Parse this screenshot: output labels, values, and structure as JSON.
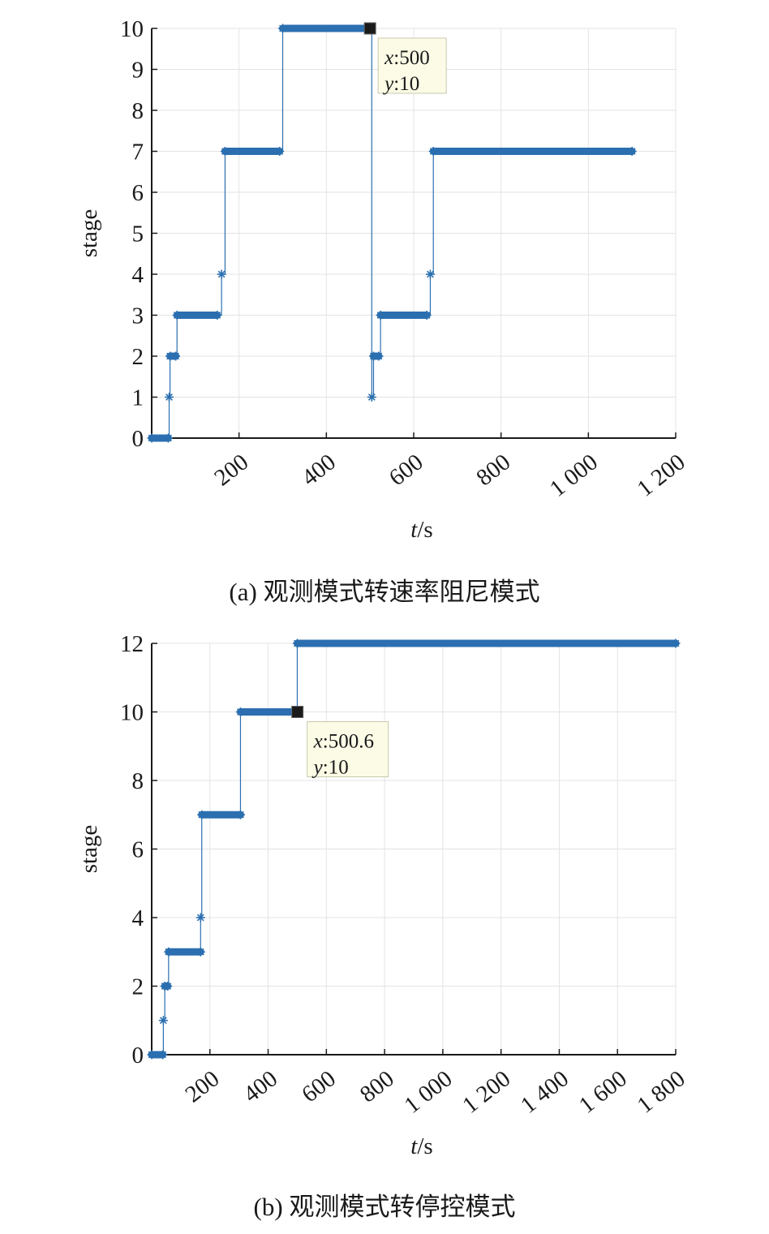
{
  "chart_data": [
    {
      "type": "line",
      "marker": "*",
      "color": "#2b6fb0",
      "xlabel_italic": "t",
      "xlabel_unit": "/s",
      "ylabel": "stage",
      "xlim": [
        0,
        1200
      ],
      "ylim": [
        0,
        10
      ],
      "grid": true,
      "xticks": [
        200,
        400,
        600,
        800,
        1000,
        1200
      ],
      "xtick_labels": [
        "200",
        "400",
        "600",
        "800",
        "1 000",
        "1 200"
      ],
      "yticks": [
        0,
        1,
        2,
        3,
        4,
        5,
        6,
        7,
        8,
        9,
        10
      ],
      "ytick_labels": [
        "0",
        "1",
        "2",
        "3",
        "4",
        "5",
        "6",
        "7",
        "8",
        "9",
        "10"
      ],
      "segments": [
        {
          "x0": 0,
          "x1": 38,
          "y": 0
        },
        {
          "x0": 40,
          "x1": 40,
          "y": 1
        },
        {
          "x0": 42,
          "x1": 55,
          "y": 2
        },
        {
          "x0": 58,
          "x1": 150,
          "y": 3
        },
        {
          "x0": 160,
          "x1": 160,
          "y": 4
        },
        {
          "x0": 168,
          "x1": 293,
          "y": 7
        },
        {
          "x0": 300,
          "x1": 500,
          "y": 10
        },
        {
          "x0": 504,
          "x1": 504,
          "y": 1
        },
        {
          "x0": 508,
          "x1": 520,
          "y": 2
        },
        {
          "x0": 524,
          "x1": 630,
          "y": 3
        },
        {
          "x0": 638,
          "x1": 638,
          "y": 4
        },
        {
          "x0": 645,
          "x1": 1100,
          "y": 7
        }
      ],
      "datatip": {
        "x": 500,
        "y": 10,
        "x_key": "x",
        "y_key": "y",
        "x_text": "500",
        "y_text": "10"
      },
      "caption": "(a) 观测模式转速率阻尼模式"
    },
    {
      "type": "line",
      "marker": "*",
      "color": "#2b6fb0",
      "xlabel_italic": "t",
      "xlabel_unit": "/s",
      "ylabel": "stage",
      "xlim": [
        0,
        1800
      ],
      "ylim": [
        0,
        12
      ],
      "grid": true,
      "xticks": [
        200,
        400,
        600,
        800,
        1000,
        1200,
        1400,
        1600,
        1800
      ],
      "xtick_labels": [
        "200",
        "400",
        "600",
        "800",
        "1 000",
        "1 200",
        "1 400",
        "1 600",
        "1 800"
      ],
      "yticks": [
        0,
        2,
        4,
        6,
        8,
        10,
        12
      ],
      "ytick_labels": [
        "0",
        "2",
        "4",
        "6",
        "8",
        "10",
        "12"
      ],
      "segments": [
        {
          "x0": 0,
          "x1": 38,
          "y": 0
        },
        {
          "x0": 40,
          "x1": 40,
          "y": 1
        },
        {
          "x0": 45,
          "x1": 55,
          "y": 2
        },
        {
          "x0": 58,
          "x1": 168,
          "y": 3
        },
        {
          "x0": 168,
          "x1": 168,
          "y": 4
        },
        {
          "x0": 172,
          "x1": 305,
          "y": 7
        },
        {
          "x0": 305,
          "x1": 500,
          "y": 10
        },
        {
          "x0": 500,
          "x1": 1800,
          "y": 12
        }
      ],
      "datatip": {
        "x": 500.6,
        "y": 10,
        "x_key": "x",
        "y_key": "y",
        "x_text": "500.6",
        "y_text": "10"
      },
      "caption": "(b) 观测模式转停控模式"
    }
  ]
}
